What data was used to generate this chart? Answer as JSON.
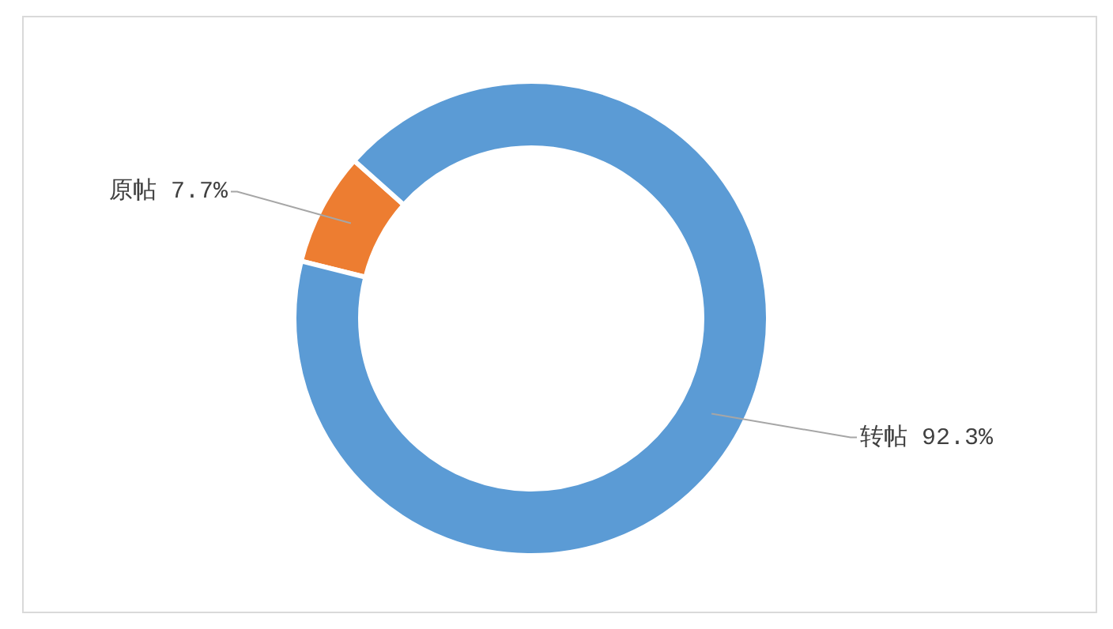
{
  "chart_data": {
    "type": "donut",
    "categories": [
      "原帖",
      "转帖"
    ],
    "values": [
      7.7,
      92.3
    ],
    "colors": [
      "#ed7d31",
      "#5b9bd5"
    ],
    "value_labels": [
      "7.7%",
      "92.3%"
    ],
    "legend": false
  }
}
